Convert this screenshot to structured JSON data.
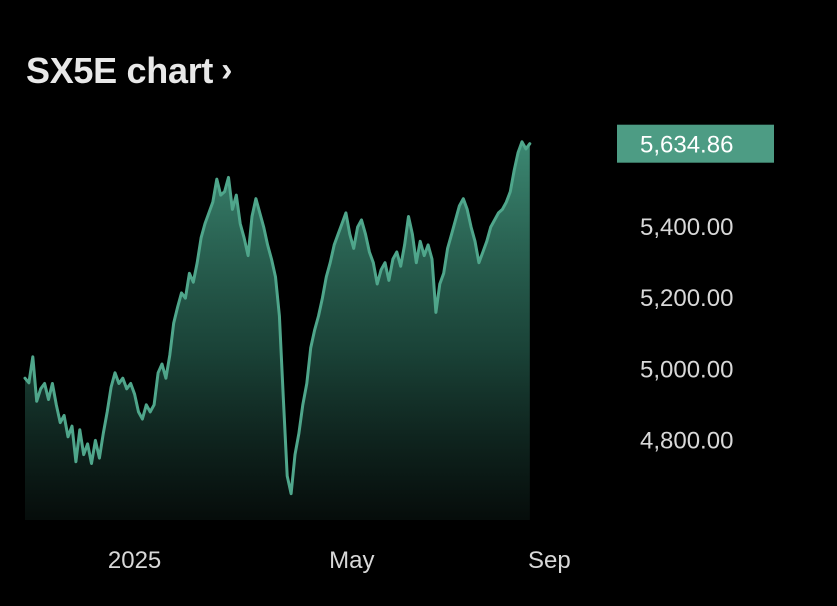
{
  "header": {
    "title": "SX5E chart",
    "chevron": "›"
  },
  "colors": {
    "background": "#000000",
    "line": "#4fa68b",
    "area_top": "#3f8f78",
    "price_badge": "#4d9c84"
  },
  "current_price": {
    "label": "5,634.86",
    "value": 5634.86
  },
  "chart_data": {
    "type": "area",
    "title": "SX5E chart",
    "xlabel": "",
    "ylabel": "",
    "ylim": [
      4590,
      5700
    ],
    "xlim": [
      0,
      300
    ],
    "grid": false,
    "y_axis_side": "right",
    "x_ticks": [
      {
        "label": "2025",
        "x": 56
      },
      {
        "label": "May",
        "x": 167
      },
      {
        "label": "Sep",
        "x": 268
      }
    ],
    "y_ticks": [
      {
        "label": "5,400.00",
        "value": 5400
      },
      {
        "label": "5,200.00",
        "value": 5200
      },
      {
        "label": "5,000.00",
        "value": 5000
      },
      {
        "label": "4,800.00",
        "value": 4800
      }
    ],
    "series": [
      {
        "values": [
          {
            "x": 0,
            "y": 4975
          },
          {
            "x": 2,
            "y": 4962
          },
          {
            "x": 4,
            "y": 5035
          },
          {
            "x": 6,
            "y": 4910
          },
          {
            "x": 8,
            "y": 4945
          },
          {
            "x": 10,
            "y": 4960
          },
          {
            "x": 12,
            "y": 4915
          },
          {
            "x": 14,
            "y": 4960
          },
          {
            "x": 16,
            "y": 4900
          },
          {
            "x": 18,
            "y": 4850
          },
          {
            "x": 20,
            "y": 4870
          },
          {
            "x": 22,
            "y": 4810
          },
          {
            "x": 24,
            "y": 4840
          },
          {
            "x": 26,
            "y": 4740
          },
          {
            "x": 28,
            "y": 4830
          },
          {
            "x": 30,
            "y": 4760
          },
          {
            "x": 32,
            "y": 4790
          },
          {
            "x": 34,
            "y": 4735
          },
          {
            "x": 36,
            "y": 4800
          },
          {
            "x": 38,
            "y": 4750
          },
          {
            "x": 40,
            "y": 4820
          },
          {
            "x": 42,
            "y": 4880
          },
          {
            "x": 44,
            "y": 4950
          },
          {
            "x": 46,
            "y": 4990
          },
          {
            "x": 48,
            "y": 4960
          },
          {
            "x": 50,
            "y": 4975
          },
          {
            "x": 52,
            "y": 4945
          },
          {
            "x": 54,
            "y": 4960
          },
          {
            "x": 56,
            "y": 4930
          },
          {
            "x": 58,
            "y": 4880
          },
          {
            "x": 60,
            "y": 4860
          },
          {
            "x": 62,
            "y": 4900
          },
          {
            "x": 64,
            "y": 4880
          },
          {
            "x": 66,
            "y": 4900
          },
          {
            "x": 68,
            "y": 4990
          },
          {
            "x": 70,
            "y": 5015
          },
          {
            "x": 72,
            "y": 4975
          },
          {
            "x": 74,
            "y": 5040
          },
          {
            "x": 76,
            "y": 5130
          },
          {
            "x": 78,
            "y": 5175
          },
          {
            "x": 80,
            "y": 5215
          },
          {
            "x": 82,
            "y": 5200
          },
          {
            "x": 84,
            "y": 5270
          },
          {
            "x": 86,
            "y": 5245
          },
          {
            "x": 88,
            "y": 5300
          },
          {
            "x": 90,
            "y": 5370
          },
          {
            "x": 92,
            "y": 5410
          },
          {
            "x": 94,
            "y": 5440
          },
          {
            "x": 96,
            "y": 5470
          },
          {
            "x": 98,
            "y": 5535
          },
          {
            "x": 100,
            "y": 5490
          },
          {
            "x": 102,
            "y": 5500
          },
          {
            "x": 104,
            "y": 5540
          },
          {
            "x": 106,
            "y": 5450
          },
          {
            "x": 108,
            "y": 5490
          },
          {
            "x": 110,
            "y": 5410
          },
          {
            "x": 112,
            "y": 5370
          },
          {
            "x": 114,
            "y": 5320
          },
          {
            "x": 116,
            "y": 5430
          },
          {
            "x": 118,
            "y": 5480
          },
          {
            "x": 120,
            "y": 5440
          },
          {
            "x": 122,
            "y": 5400
          },
          {
            "x": 124,
            "y": 5350
          },
          {
            "x": 126,
            "y": 5310
          },
          {
            "x": 128,
            "y": 5260
          },
          {
            "x": 130,
            "y": 5150
          },
          {
            "x": 132,
            "y": 4920
          },
          {
            "x": 134,
            "y": 4700
          },
          {
            "x": 136,
            "y": 4650
          },
          {
            "x": 138,
            "y": 4760
          },
          {
            "x": 140,
            "y": 4820
          },
          {
            "x": 142,
            "y": 4900
          },
          {
            "x": 144,
            "y": 4960
          },
          {
            "x": 146,
            "y": 5060
          },
          {
            "x": 148,
            "y": 5110
          },
          {
            "x": 150,
            "y": 5150
          },
          {
            "x": 152,
            "y": 5200
          },
          {
            "x": 154,
            "y": 5260
          },
          {
            "x": 156,
            "y": 5300
          },
          {
            "x": 158,
            "y": 5350
          },
          {
            "x": 160,
            "y": 5380
          },
          {
            "x": 162,
            "y": 5410
          },
          {
            "x": 164,
            "y": 5440
          },
          {
            "x": 166,
            "y": 5380
          },
          {
            "x": 168,
            "y": 5340
          },
          {
            "x": 170,
            "y": 5400
          },
          {
            "x": 172,
            "y": 5420
          },
          {
            "x": 174,
            "y": 5380
          },
          {
            "x": 176,
            "y": 5330
          },
          {
            "x": 178,
            "y": 5300
          },
          {
            "x": 180,
            "y": 5240
          },
          {
            "x": 182,
            "y": 5280
          },
          {
            "x": 184,
            "y": 5300
          },
          {
            "x": 186,
            "y": 5250
          },
          {
            "x": 188,
            "y": 5310
          },
          {
            "x": 190,
            "y": 5330
          },
          {
            "x": 192,
            "y": 5290
          },
          {
            "x": 194,
            "y": 5350
          },
          {
            "x": 196,
            "y": 5430
          },
          {
            "x": 198,
            "y": 5380
          },
          {
            "x": 200,
            "y": 5300
          },
          {
            "x": 202,
            "y": 5360
          },
          {
            "x": 204,
            "y": 5320
          },
          {
            "x": 206,
            "y": 5350
          },
          {
            "x": 208,
            "y": 5310
          },
          {
            "x": 210,
            "y": 5160
          },
          {
            "x": 212,
            "y": 5240
          },
          {
            "x": 214,
            "y": 5270
          },
          {
            "x": 216,
            "y": 5340
          },
          {
            "x": 218,
            "y": 5380
          },
          {
            "x": 220,
            "y": 5420
          },
          {
            "x": 222,
            "y": 5460
          },
          {
            "x": 224,
            "y": 5480
          },
          {
            "x": 226,
            "y": 5450
          },
          {
            "x": 228,
            "y": 5400
          },
          {
            "x": 230,
            "y": 5360
          },
          {
            "x": 232,
            "y": 5300
          },
          {
            "x": 234,
            "y": 5330
          },
          {
            "x": 236,
            "y": 5360
          },
          {
            "x": 238,
            "y": 5400
          },
          {
            "x": 240,
            "y": 5420
          },
          {
            "x": 242,
            "y": 5440
          },
          {
            "x": 244,
            "y": 5450
          },
          {
            "x": 246,
            "y": 5470
          },
          {
            "x": 248,
            "y": 5500
          },
          {
            "x": 250,
            "y": 5560
          },
          {
            "x": 252,
            "y": 5610
          },
          {
            "x": 254,
            "y": 5640
          },
          {
            "x": 256,
            "y": 5620
          },
          {
            "x": 258,
            "y": 5634.86
          }
        ]
      }
    ]
  }
}
